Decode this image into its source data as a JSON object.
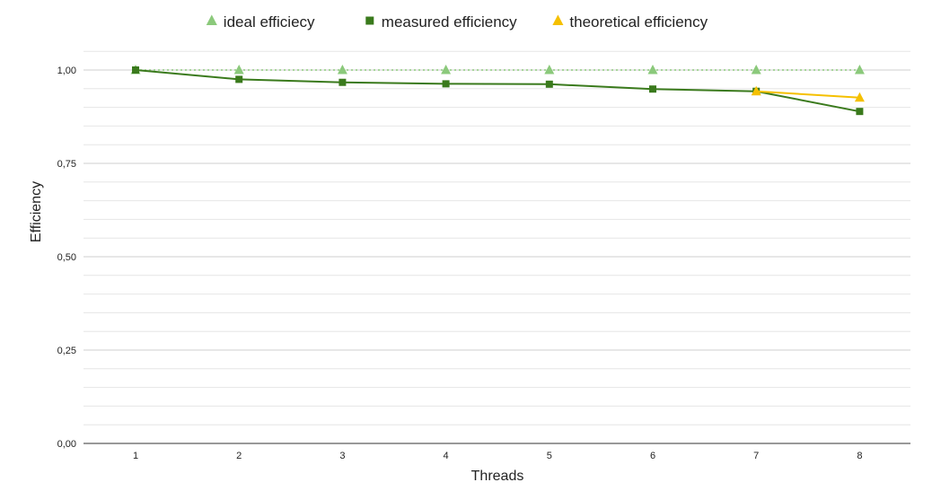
{
  "chart_data": {
    "type": "line",
    "xlabel": "Threads",
    "ylabel": "Efficiency",
    "x": [
      1,
      2,
      3,
      4,
      5,
      6,
      7,
      8
    ],
    "x_tick_labels": [
      "1",
      "2",
      "3",
      "4",
      "5",
      "6",
      "7",
      "8"
    ],
    "ylim": [
      0,
      1.05
    ],
    "y_ticks": [
      0,
      0.25,
      0.5,
      0.75,
      1.0
    ],
    "y_tick_labels": [
      "0,00",
      "0,25",
      "0,50",
      "0,75",
      "1,00"
    ],
    "grid": true,
    "legend_position": "top-center",
    "series": [
      {
        "name": "ideal efficiecy",
        "x": [
          1,
          2,
          3,
          4,
          5,
          6,
          7,
          8
        ],
        "values": [
          1.0,
          1.0,
          1.0,
          1.0,
          1.0,
          1.0,
          1.0,
          1.0
        ],
        "color": "#8bc97b",
        "marker": "triangle",
        "line_style": "dotted"
      },
      {
        "name": "measured efficiency",
        "x": [
          1,
          2,
          3,
          4,
          5,
          6,
          7,
          8
        ],
        "values": [
          1.0,
          0.975,
          0.967,
          0.963,
          0.962,
          0.949,
          0.943,
          0.889
        ],
        "color": "#3a7a1c",
        "marker": "square",
        "line_style": "solid"
      },
      {
        "name": "theoretical efficiency",
        "x": [
          7,
          8
        ],
        "values": [
          0.943,
          0.926
        ],
        "color": "#f5c000",
        "marker": "triangle",
        "line_style": "solid"
      }
    ]
  }
}
